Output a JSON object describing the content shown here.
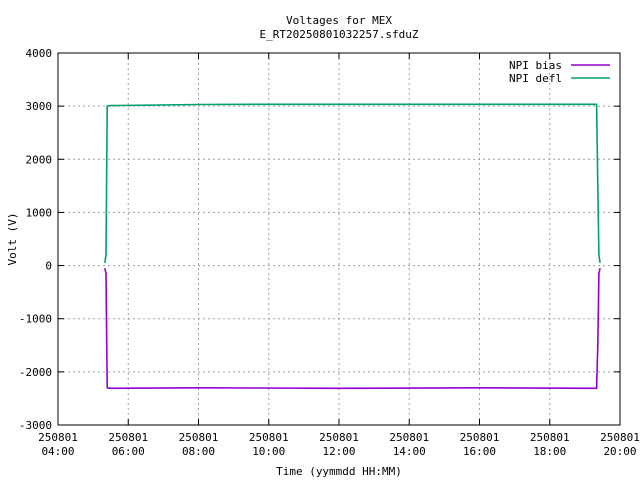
{
  "chart_data": {
    "type": "line",
    "title": "Voltages for MEX",
    "subtitle": "E_RT20250801032257.sfduZ",
    "xlabel": "Time (yymmdd HH:MM)",
    "ylabel": "Volt (V)",
    "xlim": [
      "2025-08-01 04:00",
      "2025-08-01 20:00"
    ],
    "ylim": [
      -3000,
      4000
    ],
    "grid": true,
    "legend_position": "top-right",
    "x_ticks": [
      {
        "date": "250801",
        "time": "04:00"
      },
      {
        "date": "250801",
        "time": "06:00"
      },
      {
        "date": "250801",
        "time": "08:00"
      },
      {
        "date": "250801",
        "time": "10:00"
      },
      {
        "date": "250801",
        "time": "12:00"
      },
      {
        "date": "250801",
        "time": "14:00"
      },
      {
        "date": "250801",
        "time": "16:00"
      },
      {
        "date": "250801",
        "time": "18:00"
      },
      {
        "date": "250801",
        "time": "20:00"
      }
    ],
    "y_ticks": [
      "-3000",
      "-2000",
      "-1000",
      "0",
      "1000",
      "2000",
      "3000",
      "4000"
    ],
    "series": [
      {
        "name": "NPI bias",
        "color": "#9400d3",
        "x": [
          "2025-08-01 05:20",
          "2025-08-01 05:22",
          "2025-08-01 05:24",
          "2025-08-01 05:30",
          "2025-08-01 08:00",
          "2025-08-01 12:00",
          "2025-08-01 16:00",
          "2025-08-01 19:20",
          "2025-08-01 19:22",
          "2025-08-01 19:24",
          "2025-08-01 19:26"
        ],
        "y": [
          -50,
          -150,
          -2300,
          -2310,
          -2300,
          -2310,
          -2300,
          -2310,
          -1500,
          -150,
          -50
        ]
      },
      {
        "name": "NPI defl",
        "color": "#009e73",
        "x": [
          "2025-08-01 05:20",
          "2025-08-01 05:22",
          "2025-08-01 05:24",
          "2025-08-01 05:30",
          "2025-08-01 08:00",
          "2025-08-01 10:00",
          "2025-08-01 12:00",
          "2025-08-01 16:00",
          "2025-08-01 19:20",
          "2025-08-01 19:22",
          "2025-08-01 19:24",
          "2025-08-01 19:26"
        ],
        "y": [
          50,
          200,
          3000,
          3010,
          3030,
          3035,
          3035,
          3035,
          3035,
          1500,
          200,
          50
        ]
      }
    ]
  }
}
